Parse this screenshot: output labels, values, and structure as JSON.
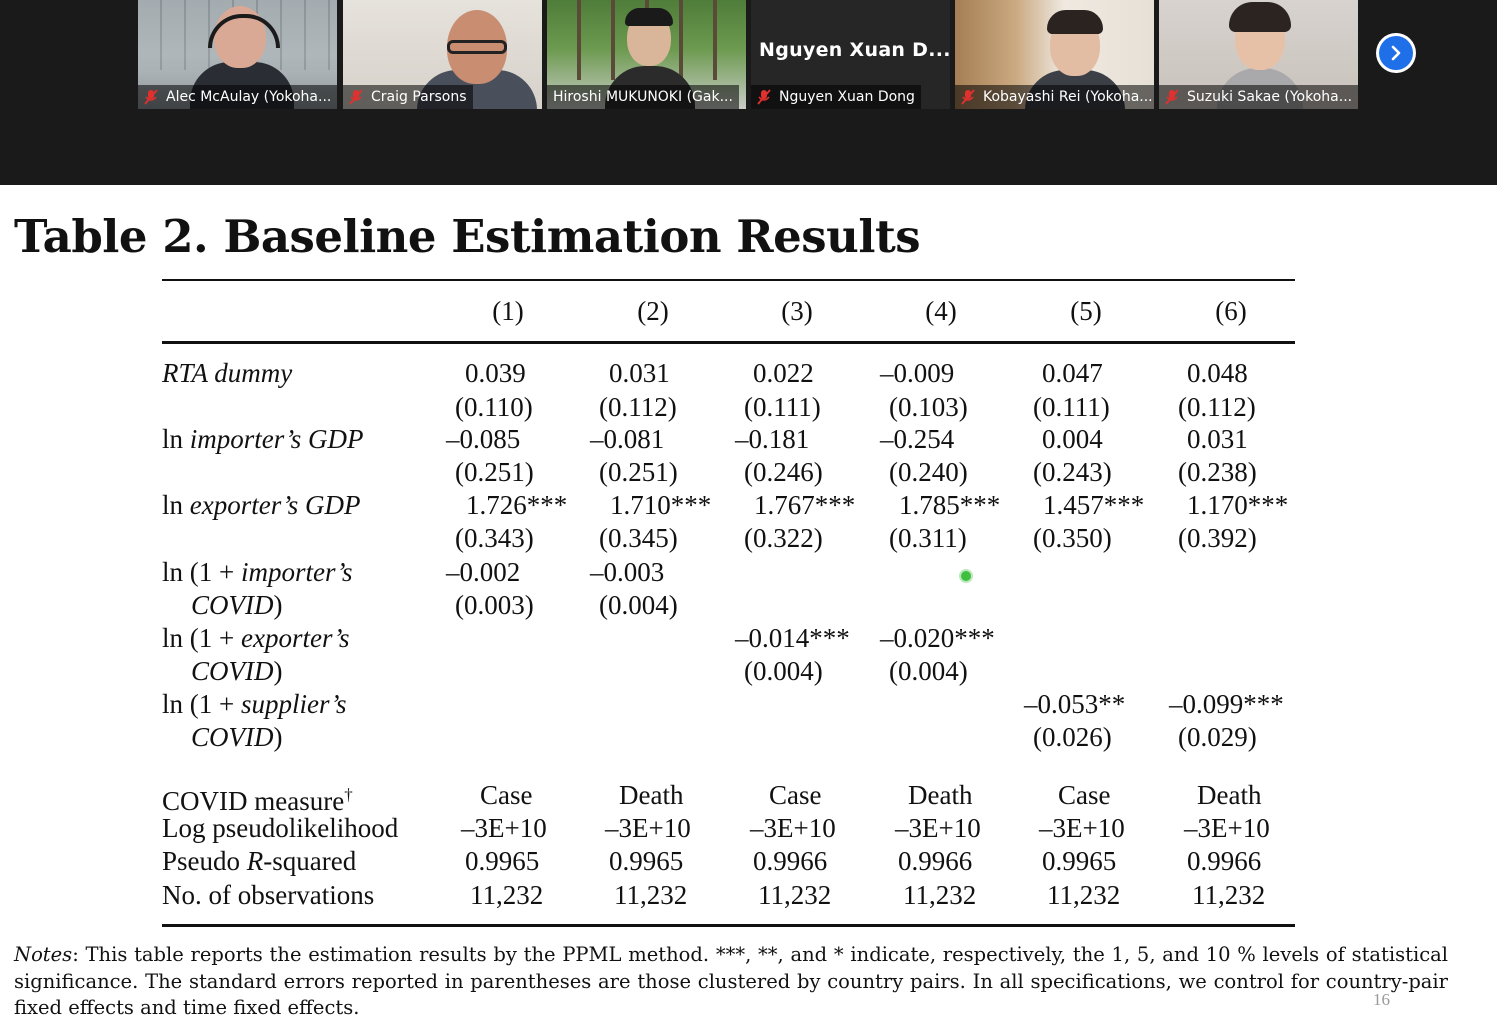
{
  "participants": [
    {
      "name": "Alec McAulay (Yokoha...",
      "muted": true,
      "active": true
    },
    {
      "name": "Craig Parsons",
      "muted": true,
      "active": false
    },
    {
      "name": "Hiroshi MUKUNOKI  (Gak...",
      "muted": false,
      "active": false
    },
    {
      "name": "Nguyen Xuan Dong",
      "muted": true,
      "active": false,
      "video_off_label": "Nguyen Xuan D..."
    },
    {
      "name": "Kobayashi Rei (Yokoha...",
      "muted": true,
      "active": false
    },
    {
      "name": "Suzuki Sakae (Yokoha...",
      "muted": true,
      "active": false
    }
  ],
  "next_icon": "chevron-right-icon",
  "colors": {
    "active_border": "#b7d11e",
    "next_button": "#1f6fe8",
    "muted_icon": "#e0312e",
    "topbar": "#1a1a1a"
  },
  "slide": {
    "title": "Table 2. Baseline Estimation Results",
    "columns": [
      "(1)",
      "(2)",
      "(3)",
      "(4)",
      "(5)",
      "(6)"
    ],
    "rows": {
      "rta": {
        "label": "RTA dummy",
        "coef": [
          "0.039",
          "0.031",
          "0.022",
          "–0.009",
          "0.047",
          "0.048"
        ],
        "se": [
          "(0.110)",
          "(0.112)",
          "(0.111)",
          "(0.103)",
          "(0.111)",
          "(0.112)"
        ]
      },
      "imp_gdp": {
        "label_prefix": "ln ",
        "label_italic": "importer’s GDP",
        "coef": [
          "–0.085",
          "–0.081",
          "–0.181",
          "–0.254",
          "0.004",
          "0.031"
        ],
        "se": [
          "(0.251)",
          "(0.251)",
          "(0.246)",
          "(0.240)",
          "(0.243)",
          "(0.238)"
        ]
      },
      "exp_gdp": {
        "label_prefix": "ln ",
        "label_italic": "exporter’s GDP",
        "coef": [
          "1.726***",
          "1.710***",
          "1.767***",
          "1.785***",
          "1.457***",
          "1.170***"
        ],
        "se": [
          "(0.343)",
          "(0.345)",
          "(0.322)",
          "(0.311)",
          "(0.350)",
          "(0.392)"
        ]
      },
      "imp_covid": {
        "label_prefix": "ln (1 + ",
        "label_italic": "importer’s",
        "label_line2": "COVID",
        "label_line2_suffix": ")",
        "coef": [
          "–0.002",
          "–0.003"
        ],
        "se": [
          "(0.003)",
          "(0.004)"
        ]
      },
      "exp_covid": {
        "label_prefix": "ln (1 + ",
        "label_italic": "exporter’s",
        "label_line2": "COVID",
        "label_line2_suffix": ")",
        "coef": [
          "–0.014***",
          "–0.020***"
        ],
        "se": [
          "(0.004)",
          "(0.004)"
        ]
      },
      "sup_covid": {
        "label_prefix": "ln (1 + ",
        "label_italic": "supplier’s",
        "label_line2": "COVID",
        "label_line2_suffix": ")",
        "coef": [
          "–0.053**",
          "–0.099***"
        ],
        "se": [
          "(0.026)",
          "(0.029)"
        ]
      }
    },
    "stats": {
      "covid_measure": {
        "label": "COVID measure",
        "dagger": "†",
        "values": [
          "Case",
          "Death",
          "Case",
          "Death",
          "Case",
          "Death"
        ]
      },
      "loglik": {
        "label": "Log pseudolikelihood",
        "values": [
          "–3E+10",
          "–3E+10",
          "–3E+10",
          "–3E+10",
          "–3E+10",
          "–3E+10"
        ]
      },
      "r2": {
        "label_prefix": "Pseudo ",
        "label_italic": "R",
        "label_suffix": "-squared",
        "values": [
          "0.9965",
          "0.9965",
          "0.9966",
          "0.9966",
          "0.9965",
          "0.9966"
        ]
      },
      "nobs": {
        "label": "No. of observations",
        "values": [
          "11,232",
          "11,232",
          "11,232",
          "11,232",
          "11,232",
          "11,232"
        ]
      }
    },
    "notes_label": "Notes",
    "notes_text": ": This table reports the estimation results by the PPML method. ***, **, and * indicate, respectively, the 1, 5, and 10 % levels of statistical significance. The standard errors reported in parentheses are those clustered by country pairs. In all specifications, we control for country-pair fixed effects and time fixed effects.",
    "page_number": "16"
  }
}
